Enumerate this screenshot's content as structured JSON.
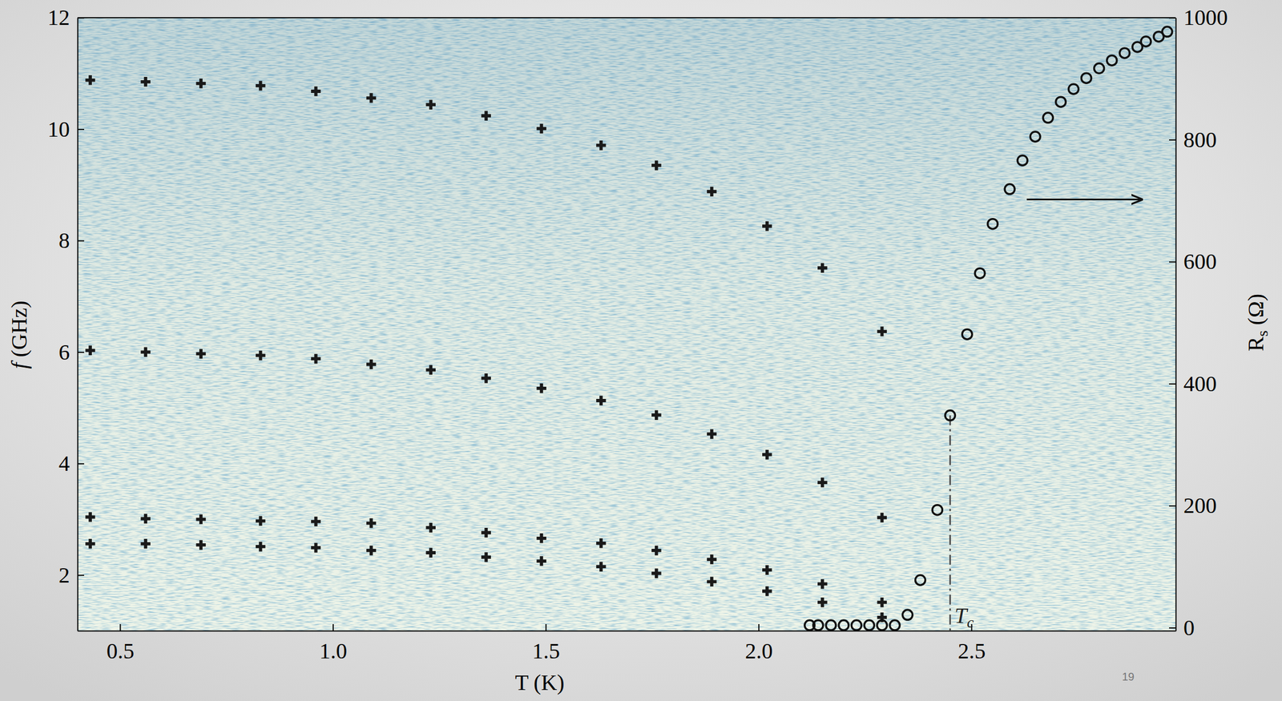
{
  "chart_data": {
    "type": "scatter",
    "xlabel": "T (K)",
    "ylabel": {
      "text": "f",
      "after": " (GHz)"
    },
    "y2label": {
      "text": "R",
      "subscript": "s",
      "after": " (Ω)"
    },
    "xlim": [
      0.4,
      2.98
    ],
    "ylim": [
      1,
      12
    ],
    "y2lim": [
      -5,
      1000
    ],
    "xticks": [
      0.5,
      {
        "value": 1,
        "label": "1.0"
      },
      1.5,
      {
        "value": 2,
        "label": "2.0"
      },
      2.5
    ],
    "yticks": [
      2,
      4,
      6,
      8,
      10,
      12
    ],
    "y2ticks": [
      0,
      200,
      400,
      600,
      800,
      1000
    ],
    "grid": false,
    "series": [
      {
        "color": "#1a1a1a",
        "marker": "plus",
        "x": [
          0.43,
          0.56,
          0.69,
          0.83,
          0.96,
          1.09,
          1.23,
          1.36,
          1.49,
          1.63,
          1.76,
          1.89,
          2.02,
          2.15,
          2.29
        ],
        "values": [
          10.88,
          10.85,
          10.82,
          10.78,
          10.68,
          10.56,
          10.44,
          10.24,
          10.01,
          9.71,
          9.35,
          8.88,
          8.26,
          7.51,
          6.37
        ]
      },
      {
        "color": "#1a1a1a",
        "marker": "plus",
        "x": [
          0.43,
          0.56,
          0.69,
          0.83,
          0.96,
          1.09,
          1.23,
          1.36,
          1.49,
          1.63,
          1.76,
          1.89,
          2.02,
          2.15,
          2.29
        ],
        "values": [
          6.03,
          6.0,
          5.97,
          5.94,
          5.88,
          5.78,
          5.68,
          5.53,
          5.35,
          5.13,
          4.87,
          4.53,
          4.16,
          3.66,
          3.03
        ]
      },
      {
        "color": "#1a1a1a",
        "marker": "plus",
        "x": [
          0.43,
          0.56,
          0.69,
          0.83,
          0.96,
          1.09,
          1.23,
          1.36,
          1.49,
          1.63,
          1.76,
          1.89,
          2.02,
          2.15,
          2.29
        ],
        "values": [
          3.04,
          3.01,
          3.0,
          2.97,
          2.96,
          2.93,
          2.85,
          2.76,
          2.66,
          2.57,
          2.44,
          2.28,
          2.09,
          1.84,
          1.51
        ]
      },
      {
        "color": "#1a1a1a",
        "marker": "plus",
        "x": [
          0.43,
          0.56,
          0.69,
          0.83,
          0.96,
          1.09,
          1.23,
          1.36,
          1.49,
          1.63,
          1.76,
          1.89,
          2.02,
          2.15,
          2.29
        ],
        "values": [
          2.56,
          2.56,
          2.54,
          2.51,
          2.49,
          2.44,
          2.4,
          2.32,
          2.25,
          2.15,
          2.03,
          1.88,
          1.71,
          1.51,
          1.24
        ]
      },
      {
        "color": "#111111",
        "marker": "circle",
        "axis": "y2",
        "x": [
          2.12,
          2.14,
          2.17,
          2.2,
          2.23,
          2.26,
          2.29,
          2.32,
          2.35,
          2.38,
          2.42,
          2.45,
          2.49,
          2.52,
          2.55,
          2.59,
          2.62,
          2.65,
          2.68,
          2.71,
          2.74,
          2.77,
          2.8,
          2.83,
          2.86,
          2.89,
          2.91,
          2.94,
          2.96
        ],
        "values": [
          4,
          4,
          4,
          4,
          4,
          4,
          4,
          4,
          21,
          78,
          193,
          348,
          481,
          581,
          662,
          719,
          766,
          805,
          836,
          862,
          883,
          901,
          917,
          930,
          942,
          952,
          961,
          969,
          977
        ]
      }
    ],
    "annotations": [
      {
        "type": "vline",
        "x": 2.45,
        "y2": 348,
        "text": "T",
        "subscript": "c"
      },
      {
        "type": "arrow",
        "x": 2.63,
        "x_end": 2.9,
        "y2": 702
      }
    ]
  },
  "slide": {
    "page_number": "19"
  }
}
